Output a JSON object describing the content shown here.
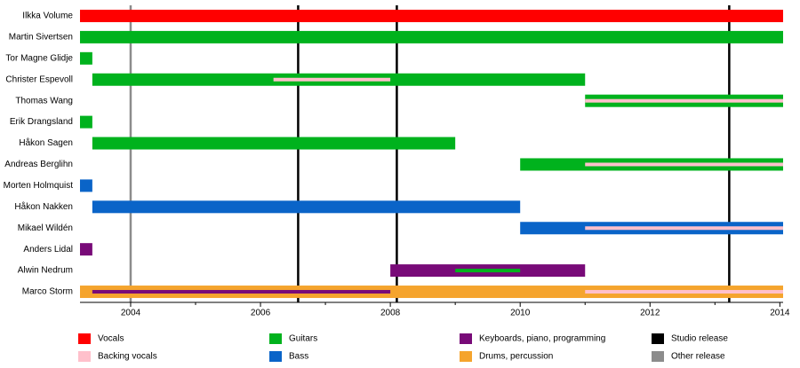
{
  "chart_data": {
    "type": "timeline",
    "categories": [
      "Ilkka Volume",
      "Martin Sivertsen",
      "Tor Magne Glidje",
      "Christer Espevoll",
      "Thomas Wang",
      "Erik Drangsland",
      "Håkon Sagen",
      "Andreas Berglihn",
      "Morten Holmquist",
      "Håkon Nakken",
      "Mikael Wildén",
      "Anders Lidal",
      "Alwin Nedrum",
      "Marco Storm"
    ],
    "xlim": [
      2003.22,
      2014.05
    ],
    "xticks": [
      2004,
      2006,
      2008,
      2010,
      2012,
      2014
    ],
    "xminor_ticks": [
      2005,
      2007,
      2009,
      2011,
      2013
    ],
    "series": [
      {
        "name": "Vocals",
        "color": "#ff0000",
        "bars": [
          {
            "member": "Ilkka Volume",
            "start": 2003.22,
            "end": 2014.05
          }
        ]
      },
      {
        "name": "Backing vocals",
        "color": "#ffc0cb",
        "bars": [
          {
            "member": "Christer Espevoll",
            "start": 2006.2,
            "end": 2008.0,
            "thin": true
          },
          {
            "member": "Thomas Wang",
            "start": 2011.0,
            "end": 2014.05,
            "thin": true
          },
          {
            "member": "Andreas Berglihn",
            "start": 2011.0,
            "end": 2014.05,
            "thin": true
          },
          {
            "member": "Mikael Wildén",
            "start": 2011.0,
            "end": 2014.05,
            "thin": true
          },
          {
            "member": "Marco Storm",
            "start": 2011.0,
            "end": 2014.05,
            "thin": true
          }
        ]
      },
      {
        "name": "Guitars",
        "color": "#00b21d",
        "bars": [
          {
            "member": "Martin Sivertsen",
            "start": 2003.22,
            "end": 2014.05
          },
          {
            "member": "Tor Magne Glidje",
            "start": 2003.22,
            "end": 2003.41
          },
          {
            "member": "Christer Espevoll",
            "start": 2003.41,
            "end": 2011.0
          },
          {
            "member": "Thomas Wang",
            "start": 2011.0,
            "end": 2014.05
          },
          {
            "member": "Erik Drangsland",
            "start": 2003.22,
            "end": 2003.41
          },
          {
            "member": "Håkon Sagen",
            "start": 2003.41,
            "end": 2009.0
          },
          {
            "member": "Andreas Berglihn",
            "start": 2010.0,
            "end": 2014.05
          },
          {
            "member": "Alwin Nedrum",
            "start": 2009.0,
            "end": 2010.0,
            "thin": true
          }
        ]
      },
      {
        "name": "Bass",
        "color": "#0a64c8",
        "bars": [
          {
            "member": "Morten Holmquist",
            "start": 2003.22,
            "end": 2003.41
          },
          {
            "member": "Håkon Nakken",
            "start": 2003.41,
            "end": 2010.0
          },
          {
            "member": "Mikael Wildén",
            "start": 2010.0,
            "end": 2014.05
          }
        ]
      },
      {
        "name": "Keyboards, piano, programming",
        "color": "#780a78",
        "bars": [
          {
            "member": "Anders Lidal",
            "start": 2003.22,
            "end": 2003.41
          },
          {
            "member": "Alwin Nedrum",
            "start": 2008.0,
            "end": 2011.0
          },
          {
            "member": "Marco Storm",
            "start": 2003.41,
            "end": 2008.0,
            "thin": true
          }
        ]
      },
      {
        "name": "Drums, percussion",
        "color": "#f5a42d",
        "bars": [
          {
            "member": "Marco Storm",
            "start": 2003.22,
            "end": 2014.05
          }
        ]
      }
    ],
    "releases": [
      {
        "name": "Studio release",
        "color": "#000000",
        "x": [
          2006.58,
          2008.1,
          2013.22
        ]
      },
      {
        "name": "Other release",
        "color": "#8c8c8c",
        "x": [
          2004.0
        ]
      }
    ]
  }
}
